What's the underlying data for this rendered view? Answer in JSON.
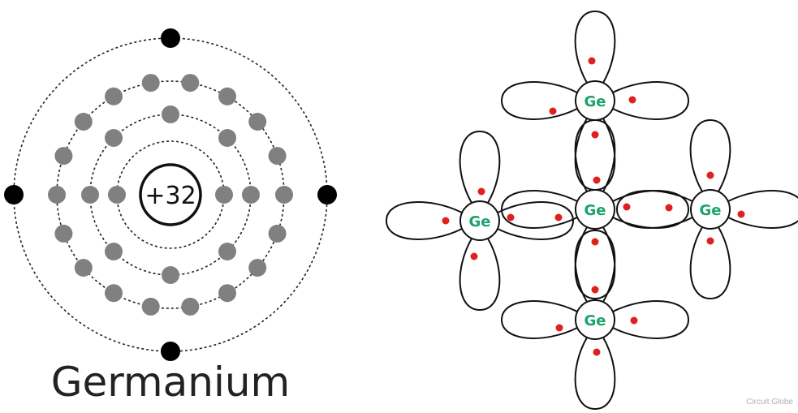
{
  "left_diagram": {
    "nucleus_label": "+32",
    "title": "Germanium",
    "shells": [
      {
        "electrons": 2,
        "color": "#808080"
      },
      {
        "electrons": 8,
        "color": "#808080"
      },
      {
        "electrons": 18,
        "color": "#808080"
      },
      {
        "electrons": 4,
        "color": "#000000"
      }
    ]
  },
  "right_diagram": {
    "atom_label": "Ge",
    "atom_label_color": "#1aa36a",
    "electron_color": "#e0201c",
    "atoms": [
      "Ge",
      "Ge",
      "Ge",
      "Ge",
      "Ge"
    ]
  },
  "watermark": "Circuit Globe"
}
